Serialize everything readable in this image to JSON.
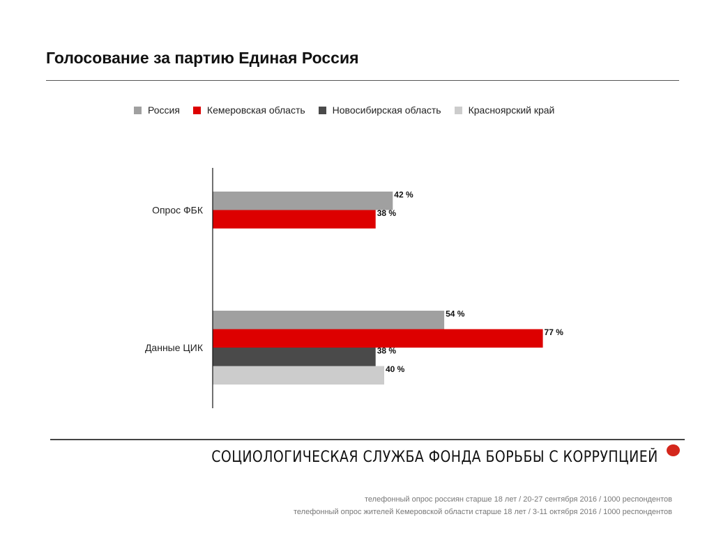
{
  "title": "Голосование за партию Единая Россия",
  "colors": {
    "Россия": "#a0a0a0",
    "Кемеровская область": "#dd0000",
    "Новосибирская область": "#4a4a4a",
    "Красноярский край": "#cccccc"
  },
  "chart_data": {
    "type": "bar",
    "orientation": "horizontal",
    "title": "Голосование за партию Единая Россия",
    "legend": [
      "Россия",
      "Кемеровская область",
      "Новосибирская область",
      "Красноярский край"
    ],
    "legend_position": "top",
    "grid": false,
    "unit": "%",
    "xlim": [
      0,
      100
    ],
    "groups": [
      {
        "label": "Опрос ФБК",
        "bars": [
          {
            "series": "Россия",
            "value": 42,
            "label": "42 %"
          },
          {
            "series": "Кемеровская область",
            "value": 38,
            "label": "38 %"
          }
        ]
      },
      {
        "label": "Данные ЦИК",
        "bars": [
          {
            "series": "Россия",
            "value": 54,
            "label": "54 %"
          },
          {
            "series": "Кемеровская область",
            "value": 77,
            "label": "77 %"
          },
          {
            "series": "Новосибирская область",
            "value": 38,
            "label": "38 %"
          },
          {
            "series": "Красноярский край",
            "value": 40,
            "label": "40 %"
          }
        ]
      }
    ]
  },
  "footer": {
    "brand": "СОЦИОЛОГИЧЕСКАЯ СЛУЖБА ФОНДА БОРЬБЫ С КОРРУПЦИЕЙ",
    "note1": "телефонный опрос россиян старше 18 лет / 20-27 сентября 2016 / 1000 респондентов",
    "note2": "телефонный опрос жителей Кемеровской области старше 18 лет / 3-11 октября 2016 / 1000 респондентов"
  }
}
